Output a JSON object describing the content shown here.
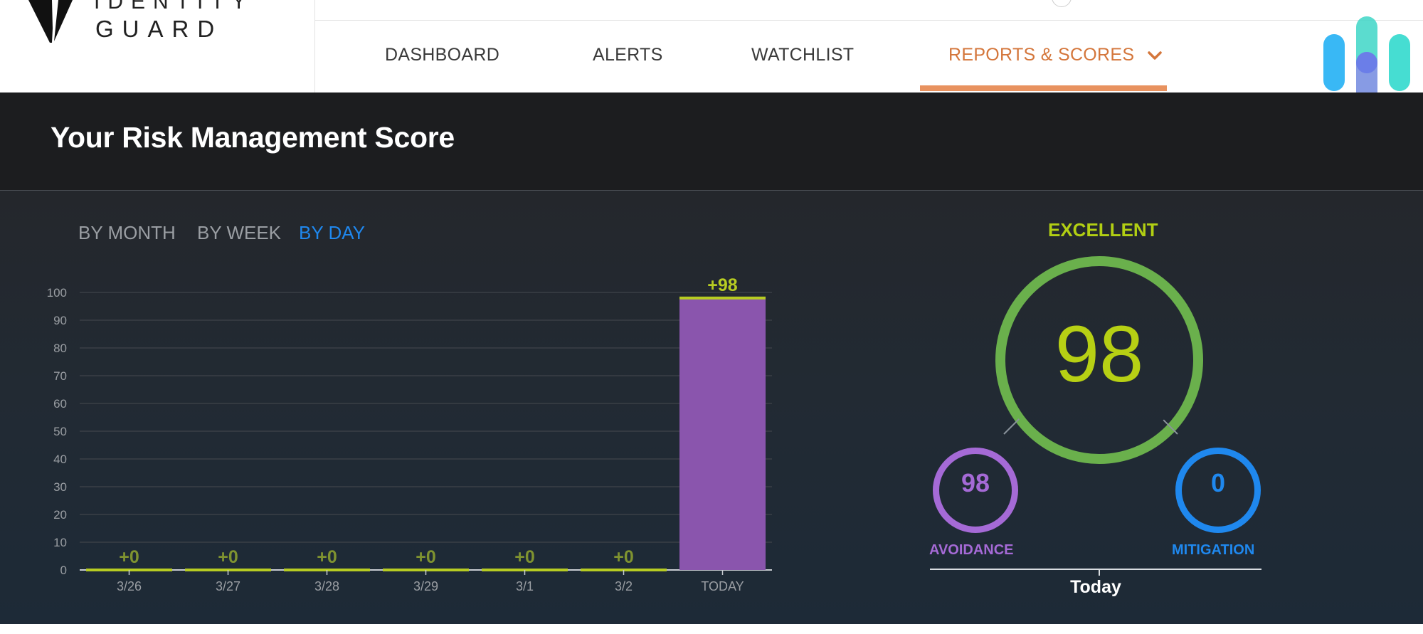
{
  "brand": {
    "logo_line1": "IDENTITY",
    "logo_line2": "GUARD"
  },
  "nav": {
    "items": [
      {
        "label": "DASHBOARD",
        "active": false
      },
      {
        "label": "ALERTS",
        "active": false
      },
      {
        "label": "WATCHLIST",
        "active": false
      },
      {
        "label": "REPORTS & SCORES",
        "active": true,
        "icon": "chevron-down-icon"
      }
    ]
  },
  "page": {
    "title": "Your Risk Management Score"
  },
  "tabs": [
    {
      "label": "BY MONTH",
      "active": false
    },
    {
      "label": "BY WEEK",
      "active": false
    },
    {
      "label": "BY DAY",
      "active": true
    }
  ],
  "chart_data": {
    "type": "bar",
    "categories": [
      "3/26",
      "3/27",
      "3/28",
      "3/29",
      "3/1",
      "3/2",
      "TODAY"
    ],
    "values": [
      0,
      0,
      0,
      0,
      0,
      0,
      98
    ],
    "data_labels": [
      "+0",
      "+0",
      "+0",
      "+0",
      "+0",
      "+0",
      "+98"
    ],
    "ylim": [
      0,
      100
    ],
    "yticks": [
      0,
      10,
      20,
      30,
      40,
      50,
      60,
      70,
      80,
      90,
      100
    ],
    "grid": true,
    "colors": {
      "bar": "#8a55ad",
      "bar_top": "#b7cc22",
      "label": "#b7cc22",
      "zero_label": "#7f9330",
      "axis_text": "#9a9ea3",
      "grid": "#3a3f46"
    }
  },
  "score": {
    "grade": "EXCELLENT",
    "value": "98",
    "avoidance": {
      "value": "98",
      "label": "AVOIDANCE"
    },
    "mitigation": {
      "value": "0",
      "label": "MITIGATION"
    },
    "period": "Today",
    "colors": {
      "grade": "#b2cf13",
      "ring": "#6ab04c",
      "avoidance": "#a56ad6",
      "mitigation": "#1f88ee"
    }
  }
}
